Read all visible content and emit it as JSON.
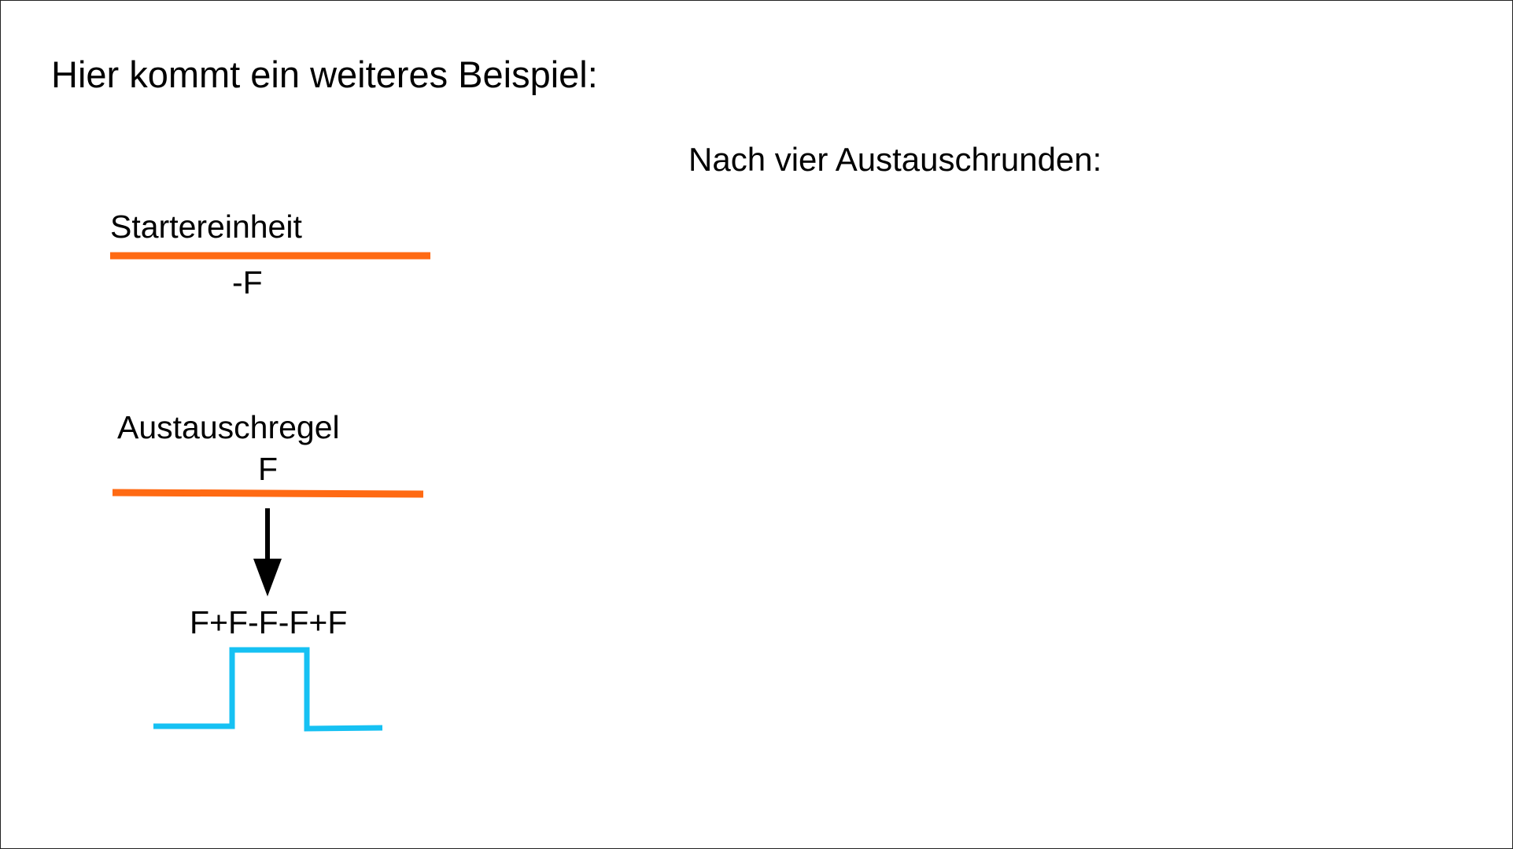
{
  "slide": {
    "heading": "Hier kommt ein weiteres Beispiel:",
    "result_heading": "Nach vier Austauschrunden:"
  },
  "starter": {
    "label": "Startereinheit",
    "value": "-F"
  },
  "rule": {
    "label": "Austauschregel",
    "input": "F",
    "output": "F+F-F-F+F"
  },
  "colors": {
    "segment": "#ff6a13",
    "curve": "#16c1f3",
    "arrow": "#000000"
  }
}
